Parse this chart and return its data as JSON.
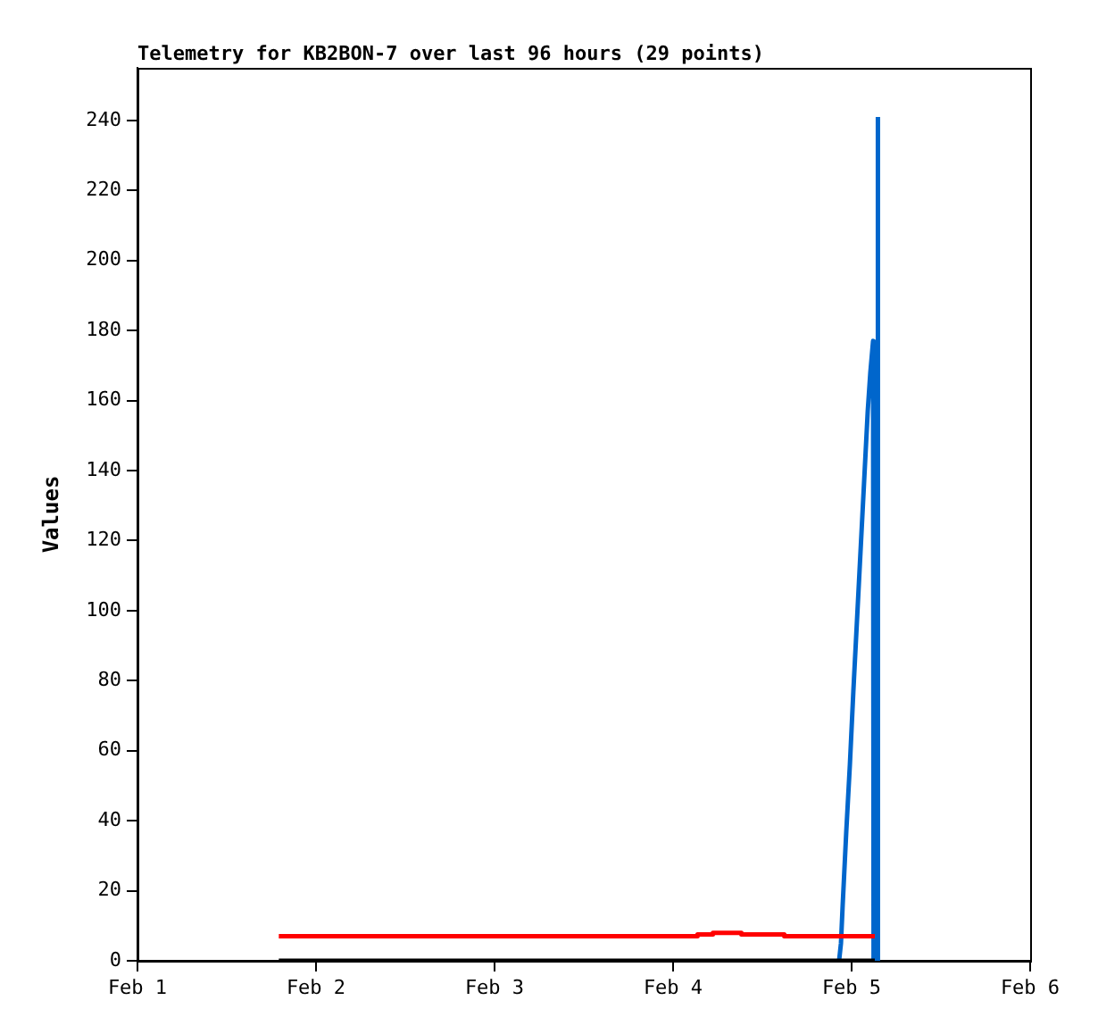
{
  "chart_data": {
    "type": "line",
    "title": "Telemetry for KB2BON-7 over last 96 hours (29 points)",
    "ylabel": "Values",
    "xlim": [
      "--02-01",
      "--02-06"
    ],
    "xticks": [
      {
        "value": "--02-01",
        "label": "Feb 1"
      },
      {
        "value": "--02-02",
        "label": "Feb 2"
      },
      {
        "value": "--02-03",
        "label": "Feb 3"
      },
      {
        "value": "--02-04",
        "label": "Feb 4"
      },
      {
        "value": "--02-05",
        "label": "Feb 5"
      },
      {
        "value": "--02-06",
        "label": "Feb 6"
      }
    ],
    "ylim": [
      0,
      255
    ],
    "yticks": [
      0,
      20,
      40,
      60,
      80,
      100,
      120,
      140,
      160,
      180,
      200,
      220,
      240
    ],
    "grid": false,
    "legend": false,
    "marker": "none",
    "series": [
      {
        "type": "step",
        "color": "#ff0000",
        "x": [
          "--02-01T19:00",
          "--02-04T03:17",
          "--02-04T05:21",
          "--02-04T09:11",
          "--02-04T14:57",
          "--02-05T03:07"
        ],
        "values": [
          7,
          7.5,
          8,
          7.5,
          7,
          7
        ]
      },
      {
        "type": "step",
        "color": "#000000",
        "x": [
          "--02-01T19:00",
          "--02-05T03:07"
        ],
        "values": [
          0,
          0
        ]
      },
      {
        "color": "#0066cc",
        "x": [
          "--02-04T22:19",
          "--02-04T22:34",
          "--02-04T22:48",
          "--02-04T23:17",
          "--02-04T23:46",
          "--02-05T00:14",
          "--02-05T00:43",
          "--02-05T01:12",
          "--02-05T01:41",
          "--02-05T02:10",
          "--02-05T02:31",
          "--02-05T02:53",
          "--02-05T02:57",
          "--02-05T03:30",
          "--02-05T03:32"
        ],
        "values": [
          0,
          5,
          16,
          37,
          56,
          77,
          97,
          117,
          137,
          157,
          168,
          177,
          0,
          0,
          241
        ]
      }
    ]
  }
}
